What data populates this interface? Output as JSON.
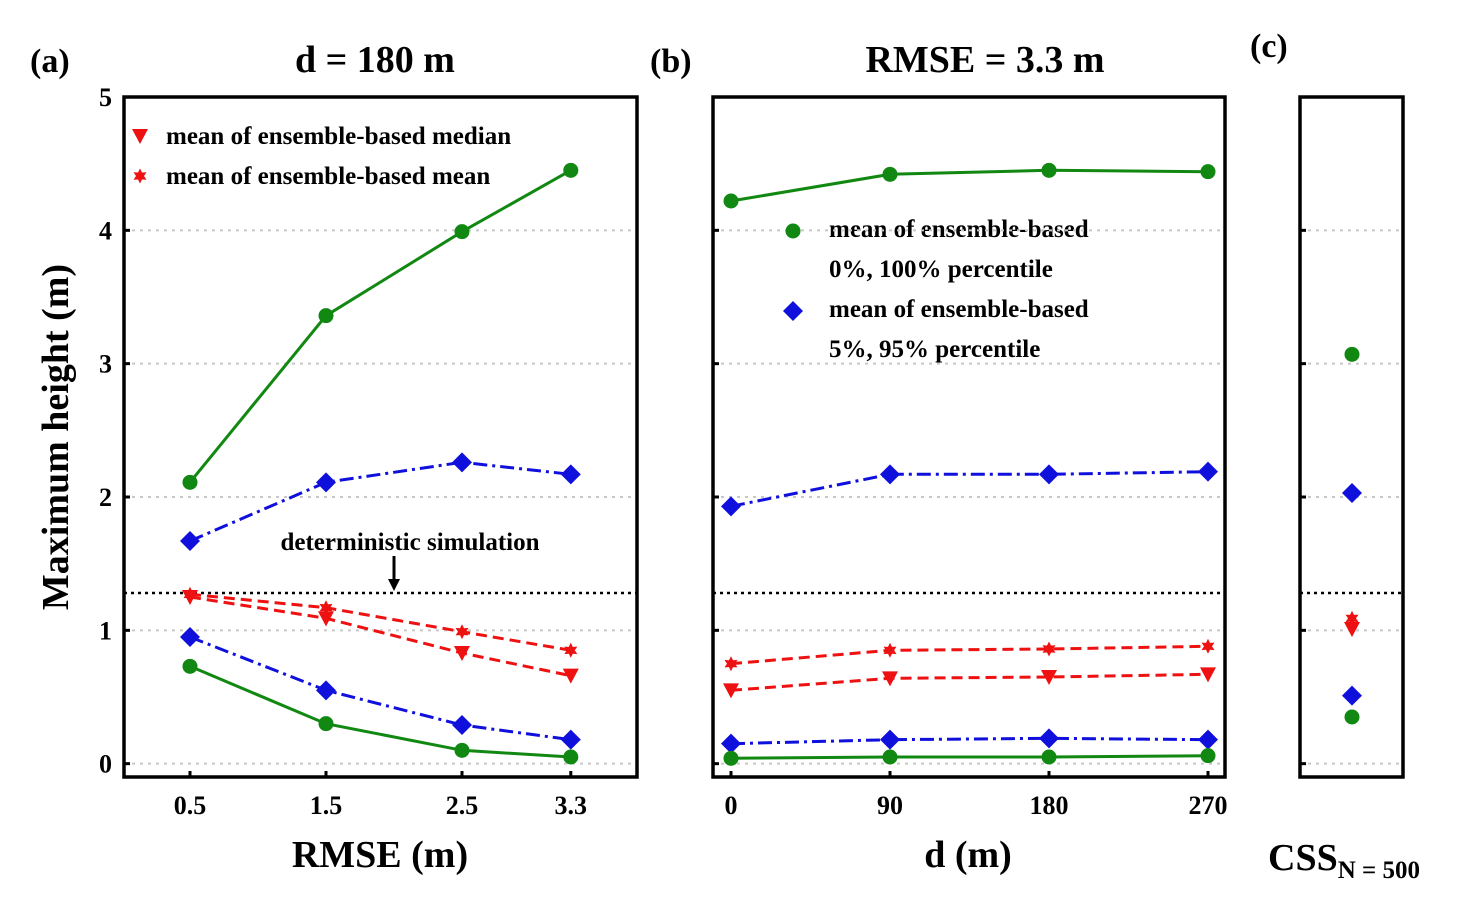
{
  "chart_data": [
    {
      "type": "line",
      "panel_label": "(a)",
      "title": "d = 180 m",
      "xlabel": "RMSE (m)",
      "ylabel": "Maximum height (m)",
      "x": [
        0.5,
        1.5,
        2.5,
        3.3
      ],
      "xtick_labels": [
        "0.5",
        "1.5",
        "2.5",
        "3.3"
      ],
      "ylim": [
        -0.1,
        5
      ],
      "yticks": [
        0,
        1,
        2,
        3,
        4,
        5
      ],
      "ytick_labels": [
        "0",
        "1",
        "2",
        "3",
        "4",
        "5"
      ],
      "grid": "horizontal dotted",
      "legend": [
        {
          "marker": "down-triangle",
          "color": "#ee1111",
          "label": "mean of ensemble-based median"
        },
        {
          "marker": "star",
          "color": "#ee1111",
          "label": "mean of ensemble-based mean"
        }
      ],
      "annotation": {
        "text": "deterministic simulation",
        "value": 1.28,
        "arrow_at_x": 2.0
      },
      "series": [
        {
          "name": "max (100% percentile)",
          "color": "#118811",
          "marker": "circle",
          "style": "solid",
          "values": [
            2.11,
            3.36,
            3.99,
            4.45
          ]
        },
        {
          "name": "95% percentile",
          "color": "#1010dd",
          "marker": "diamond",
          "style": "dashdot",
          "values": [
            1.67,
            2.11,
            2.26,
            2.17
          ]
        },
        {
          "name": "ensemble-based mean",
          "color": "#ee1111",
          "marker": "star",
          "style": "dashed",
          "values": [
            1.27,
            1.17,
            0.99,
            0.85
          ]
        },
        {
          "name": "ensemble-based median",
          "color": "#ee1111",
          "marker": "down-triangle",
          "style": "dashed",
          "values": [
            1.25,
            1.09,
            0.83,
            0.66
          ]
        },
        {
          "name": "5% percentile",
          "color": "#1010dd",
          "marker": "diamond",
          "style": "dashdot",
          "values": [
            0.95,
            0.55,
            0.29,
            0.18
          ]
        },
        {
          "name": "min (0% percentile)",
          "color": "#118811",
          "marker": "circle",
          "style": "solid",
          "values": [
            0.73,
            0.3,
            0.1,
            0.05
          ]
        }
      ]
    },
    {
      "type": "line",
      "panel_label": "(b)",
      "title": "RMSE = 3.3 m",
      "xlabel": "d (m)",
      "x": [
        0,
        90,
        180,
        270
      ],
      "xtick_labels": [
        "0",
        "90",
        "180",
        "270"
      ],
      "ylim": [
        -0.1,
        5
      ],
      "grid": "horizontal dotted",
      "legend": [
        {
          "marker": "circle",
          "color": "#118811",
          "label": "mean of ensemble-based",
          "label2": "0%, 100% percentile"
        },
        {
          "marker": "diamond",
          "color": "#1010dd",
          "label": "mean of ensemble-based",
          "label2": "5%, 95% percentile"
        }
      ],
      "deterministic_value": 1.28,
      "series": [
        {
          "name": "max (100% percentile)",
          "color": "#118811",
          "marker": "circle",
          "style": "solid",
          "values": [
            4.22,
            4.42,
            4.45,
            4.44
          ]
        },
        {
          "name": "95% percentile",
          "color": "#1010dd",
          "marker": "diamond",
          "style": "dashdot",
          "values": [
            1.93,
            2.17,
            2.17,
            2.19
          ]
        },
        {
          "name": "ensemble-based mean",
          "color": "#ee1111",
          "marker": "star",
          "style": "dashed",
          "values": [
            0.75,
            0.85,
            0.86,
            0.88
          ]
        },
        {
          "name": "ensemble-based median",
          "color": "#ee1111",
          "marker": "down-triangle",
          "style": "dashed",
          "values": [
            0.55,
            0.64,
            0.65,
            0.67
          ]
        },
        {
          "name": "5% percentile",
          "color": "#1010dd",
          "marker": "diamond",
          "style": "dashdot",
          "values": [
            0.15,
            0.18,
            0.19,
            0.18
          ]
        },
        {
          "name": "min (0% percentile)",
          "color": "#118811",
          "marker": "circle",
          "style": "solid",
          "values": [
            0.04,
            0.05,
            0.05,
            0.06
          ]
        }
      ]
    },
    {
      "type": "scatter",
      "panel_label": "(c)",
      "xlabel_main": "CSS",
      "xlabel_sub": "N = 500",
      "ylim": [
        -0.1,
        5
      ],
      "grid": "horizontal dotted",
      "deterministic_value": 1.28,
      "points": [
        {
          "name": "max (100% percentile)",
          "color": "#118811",
          "marker": "circle",
          "value": 3.07
        },
        {
          "name": "95% percentile",
          "color": "#1010dd",
          "marker": "diamond",
          "value": 2.03
        },
        {
          "name": "ensemble-based mean",
          "color": "#ee1111",
          "marker": "star",
          "value": 1.09
        },
        {
          "name": "ensemble-based median",
          "color": "#ee1111",
          "marker": "down-triangle",
          "value": 1.01
        },
        {
          "name": "5% percentile",
          "color": "#1010dd",
          "marker": "diamond",
          "value": 0.51
        },
        {
          "name": "min (0% percentile)",
          "color": "#118811",
          "marker": "circle",
          "value": 0.35
        }
      ]
    }
  ]
}
